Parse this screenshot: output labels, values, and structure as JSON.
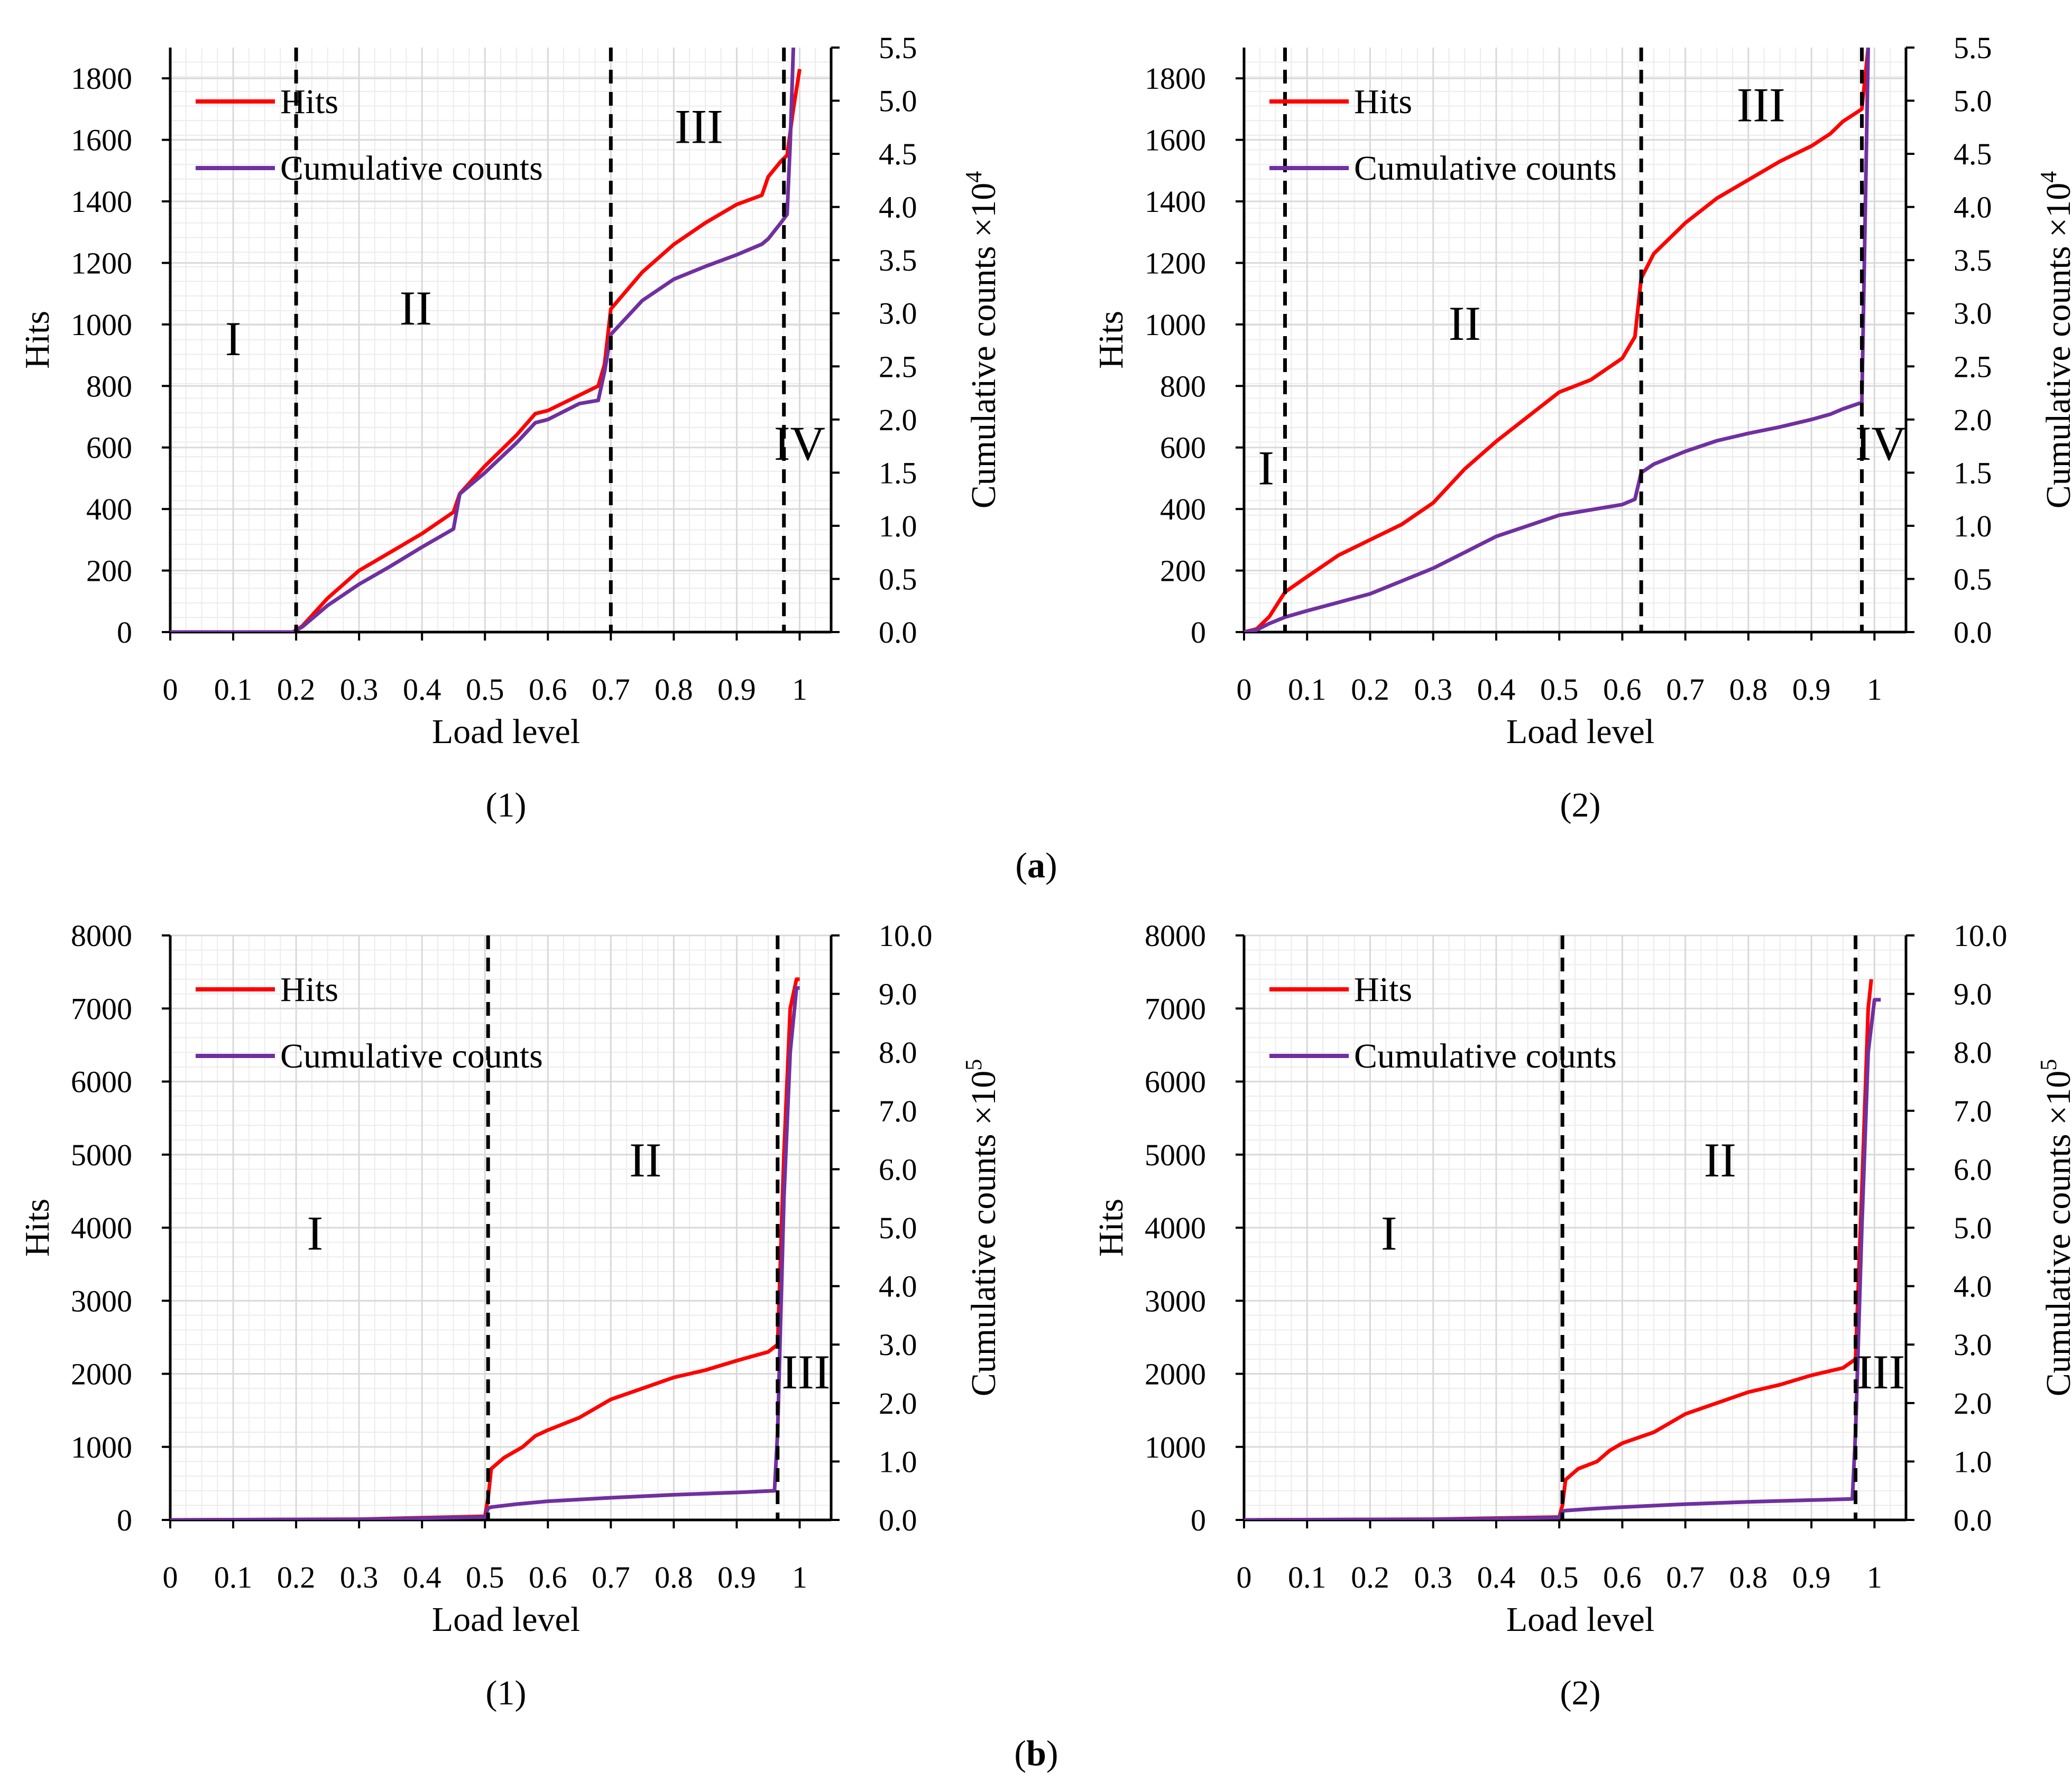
{
  "figure": {
    "group_captions": [
      {
        "prefix": "(",
        "letter": "a",
        "suffix": ")"
      },
      {
        "prefix": "(",
        "letter": "b",
        "suffix": ")"
      }
    ]
  },
  "colors": {
    "hits": "#ff0000",
    "cumulative": "#7030a0",
    "grid": "#d9d9d9",
    "axis": "#000000"
  },
  "chart_data": [
    {
      "type": "line",
      "caption": "(1)",
      "xlabel": "Load level",
      "ylabel": "Hits",
      "y2label": "Cumulative counts ×10",
      "y2exp": "4",
      "xlim": [
        0,
        1.05
      ],
      "ylim": [
        0,
        1900
      ],
      "y2lim": [
        0,
        5.5
      ],
      "xticks": [
        0,
        0.1,
        0.2,
        0.3,
        0.4,
        0.5,
        0.6,
        0.7,
        0.8,
        0.9,
        1
      ],
      "xtick_labels": [
        "0",
        "0.1",
        "0.2",
        "0.3",
        "0.4",
        "0.5",
        "0.6",
        "0.7",
        "0.8",
        "0.9",
        "1"
      ],
      "yticks": [
        0,
        200,
        400,
        600,
        800,
        1000,
        1200,
        1400,
        1600,
        1800
      ],
      "ytick_labels": [
        "0",
        "200",
        "400",
        "600",
        "800",
        "1000",
        "1200",
        "1400",
        "1600",
        "1800"
      ],
      "y2ticks": [
        0,
        0.5,
        1,
        1.5,
        2,
        2.5,
        3,
        3.5,
        4,
        4.5,
        5,
        5.5
      ],
      "y2tick_labels": [
        "0.0",
        "0.5",
        "1.0",
        "1.5",
        "2.0",
        "2.5",
        "3.0",
        "3.5",
        "4.0",
        "4.5",
        "5.0",
        "5.5"
      ],
      "dividers": [
        0.2,
        0.7,
        0.975
      ],
      "stages": [
        {
          "label": "I",
          "x": 0.1,
          "y": 900
        },
        {
          "label": "II",
          "x": 0.39,
          "y": 1000
        },
        {
          "label": "III",
          "x": 0.84,
          "y": 1590
        },
        {
          "label": "IV",
          "x": 1.0,
          "y": 560
        }
      ],
      "legend": {
        "position": "top-left",
        "entries": [
          "Hits",
          "Cumulative counts"
        ]
      },
      "series": [
        {
          "name": "Hits",
          "axis": "left",
          "x": [
            0,
            0.195,
            0.21,
            0.25,
            0.3,
            0.35,
            0.4,
            0.45,
            0.46,
            0.5,
            0.55,
            0.58,
            0.6,
            0.65,
            0.68,
            0.69,
            0.7,
            0.75,
            0.8,
            0.85,
            0.9,
            0.94,
            0.95,
            0.97,
            0.98,
            0.99,
            1.0
          ],
          "y": [
            0,
            0,
            20,
            110,
            200,
            260,
            320,
            390,
            450,
            540,
            640,
            710,
            720,
            770,
            800,
            870,
            1050,
            1170,
            1260,
            1330,
            1390,
            1420,
            1480,
            1530,
            1550,
            1700,
            1830
          ]
        },
        {
          "name": "Cumulative counts",
          "axis": "right",
          "x": [
            0,
            0.195,
            0.21,
            0.25,
            0.3,
            0.35,
            0.4,
            0.45,
            0.46,
            0.5,
            0.55,
            0.58,
            0.6,
            0.65,
            0.68,
            0.69,
            0.7,
            0.75,
            0.8,
            0.85,
            0.9,
            0.94,
            0.95,
            0.97,
            0.98,
            0.985,
            0.99
          ],
          "y": [
            0,
            0,
            0.05,
            0.25,
            0.45,
            0.62,
            0.8,
            0.97,
            1.3,
            1.5,
            1.78,
            1.97,
            2.0,
            2.15,
            2.18,
            2.45,
            2.8,
            3.12,
            3.32,
            3.44,
            3.55,
            3.65,
            3.7,
            3.85,
            3.93,
            4.6,
            5.5
          ]
        }
      ]
    },
    {
      "type": "line",
      "caption": "(2)",
      "xlabel": "Load level",
      "ylabel": "Hits",
      "y2label": "Cumulative counts ×10",
      "y2exp": "4",
      "xlim": [
        0,
        1.05
      ],
      "ylim": [
        0,
        1900
      ],
      "y2lim": [
        0,
        5.5
      ],
      "xticks": [
        0,
        0.1,
        0.2,
        0.3,
        0.4,
        0.5,
        0.6,
        0.7,
        0.8,
        0.9,
        1
      ],
      "xtick_labels": [
        "0",
        "0.1",
        "0.2",
        "0.3",
        "0.4",
        "0.5",
        "0.6",
        "0.7",
        "0.8",
        "0.9",
        "1"
      ],
      "yticks": [
        0,
        200,
        400,
        600,
        800,
        1000,
        1200,
        1400,
        1600,
        1800
      ],
      "ytick_labels": [
        "0",
        "200",
        "400",
        "600",
        "800",
        "1000",
        "1200",
        "1400",
        "1600",
        "1800"
      ],
      "y2ticks": [
        0,
        0.5,
        1,
        1.5,
        2,
        2.5,
        3,
        3.5,
        4,
        4.5,
        5,
        5.5
      ],
      "y2tick_labels": [
        "0.0",
        "0.5",
        "1.0",
        "1.5",
        "2.0",
        "2.5",
        "3.0",
        "3.5",
        "4.0",
        "4.5",
        "5.0",
        "5.5"
      ],
      "dividers": [
        0.065,
        0.63,
        0.98
      ],
      "stages": [
        {
          "label": "I",
          "x": 0.035,
          "y": 480
        },
        {
          "label": "II",
          "x": 0.35,
          "y": 950
        },
        {
          "label": "III",
          "x": 0.82,
          "y": 1660
        },
        {
          "label": "IV",
          "x": 1.01,
          "y": 560
        }
      ],
      "legend": {
        "position": "top-left",
        "entries": [
          "Hits",
          "Cumulative counts"
        ]
      },
      "series": [
        {
          "name": "Hits",
          "axis": "left",
          "x": [
            0,
            0.02,
            0.04,
            0.065,
            0.1,
            0.15,
            0.2,
            0.25,
            0.3,
            0.35,
            0.4,
            0.45,
            0.5,
            0.55,
            0.6,
            0.62,
            0.63,
            0.65,
            0.7,
            0.75,
            0.8,
            0.85,
            0.9,
            0.93,
            0.95,
            0.98,
            0.99
          ],
          "y": [
            0,
            10,
            50,
            130,
            180,
            250,
            300,
            350,
            420,
            530,
            620,
            700,
            780,
            820,
            890,
            960,
            1150,
            1230,
            1330,
            1410,
            1470,
            1530,
            1580,
            1620,
            1660,
            1700,
            1900
          ]
        },
        {
          "name": "Cumulative counts",
          "axis": "right",
          "x": [
            0,
            0.02,
            0.04,
            0.065,
            0.1,
            0.15,
            0.2,
            0.25,
            0.3,
            0.35,
            0.4,
            0.45,
            0.5,
            0.55,
            0.6,
            0.62,
            0.63,
            0.65,
            0.7,
            0.75,
            0.8,
            0.85,
            0.9,
            0.93,
            0.95,
            0.98,
            0.99
          ],
          "y": [
            0,
            0.02,
            0.08,
            0.14,
            0.2,
            0.28,
            0.36,
            0.48,
            0.6,
            0.75,
            0.9,
            1.0,
            1.1,
            1.15,
            1.2,
            1.25,
            1.5,
            1.58,
            1.7,
            1.8,
            1.87,
            1.93,
            2.0,
            2.05,
            2.1,
            2.16,
            5.5
          ]
        }
      ]
    },
    {
      "type": "line",
      "caption": "(1)",
      "xlabel": "Load level",
      "ylabel": "Hits",
      "y2label": "Cumulative counts ×10",
      "y2exp": "5",
      "xlim": [
        0,
        1.05
      ],
      "ylim": [
        0,
        8000
      ],
      "y2lim": [
        0,
        10
      ],
      "xticks": [
        0,
        0.1,
        0.2,
        0.3,
        0.4,
        0.5,
        0.6,
        0.7,
        0.8,
        0.9,
        1
      ],
      "xtick_labels": [
        "0",
        "0.1",
        "0.2",
        "0.3",
        "0.4",
        "0.5",
        "0.6",
        "0.7",
        "0.8",
        "0.9",
        "1"
      ],
      "yticks": [
        0,
        1000,
        2000,
        3000,
        4000,
        5000,
        6000,
        7000,
        8000
      ],
      "ytick_labels": [
        "0",
        "1000",
        "2000",
        "3000",
        "4000",
        "5000",
        "6000",
        "7000",
        "8000"
      ],
      "y2ticks": [
        0,
        1,
        2,
        3,
        4,
        5,
        6,
        7,
        8,
        9,
        10
      ],
      "y2tick_labels": [
        "0.0",
        "1.0",
        "2.0",
        "3.0",
        "4.0",
        "5.0",
        "6.0",
        "7.0",
        "8.0",
        "9.0",
        "10.0"
      ],
      "dividers": [
        0.505,
        0.965
      ],
      "stages": [
        {
          "label": "I",
          "x": 0.23,
          "y": 3700
        },
        {
          "label": "II",
          "x": 0.755,
          "y": 4700
        },
        {
          "label": "III",
          "x": 1.01,
          "y": 1800
        }
      ],
      "legend": {
        "position": "top-left",
        "entries": [
          "Hits",
          "Cumulative counts"
        ]
      },
      "series": [
        {
          "name": "Hits",
          "axis": "left",
          "x": [
            0,
            0.3,
            0.5,
            0.505,
            0.51,
            0.53,
            0.56,
            0.58,
            0.6,
            0.65,
            0.7,
            0.75,
            0.8,
            0.85,
            0.9,
            0.95,
            0.965,
            0.975,
            0.985,
            0.995,
            1.0
          ],
          "y": [
            0,
            10,
            50,
            300,
            700,
            850,
            1000,
            1150,
            1230,
            1400,
            1650,
            1800,
            1950,
            2050,
            2180,
            2300,
            2400,
            5000,
            7000,
            7400,
            7400
          ]
        },
        {
          "name": "Cumulative counts",
          "axis": "right",
          "x": [
            0,
            0.3,
            0.5,
            0.505,
            0.51,
            0.55,
            0.6,
            0.7,
            0.8,
            0.9,
            0.96,
            0.965,
            0.975,
            0.985,
            0.995,
            1.0
          ],
          "y": [
            0,
            0.01,
            0.05,
            0.2,
            0.22,
            0.27,
            0.32,
            0.38,
            0.43,
            0.47,
            0.5,
            1.5,
            5.5,
            8.0,
            9.1,
            9.1
          ]
        }
      ]
    },
    {
      "type": "line",
      "caption": "(2)",
      "xlabel": "Load level",
      "ylabel": "Hits",
      "y2label": "Cumulative counts ×10",
      "y2exp": "5",
      "xlim": [
        0,
        1.05
      ],
      "ylim": [
        0,
        8000
      ],
      "y2lim": [
        0,
        10
      ],
      "xticks": [
        0,
        0.1,
        0.2,
        0.3,
        0.4,
        0.5,
        0.6,
        0.7,
        0.8,
        0.9,
        1
      ],
      "xtick_labels": [
        "0",
        "0.1",
        "0.2",
        "0.3",
        "0.4",
        "0.5",
        "0.6",
        "0.7",
        "0.8",
        "0.9",
        "1"
      ],
      "yticks": [
        0,
        1000,
        2000,
        3000,
        4000,
        5000,
        6000,
        7000,
        8000
      ],
      "ytick_labels": [
        "0",
        "1000",
        "2000",
        "3000",
        "4000",
        "5000",
        "6000",
        "7000",
        "8000"
      ],
      "y2ticks": [
        0,
        1,
        2,
        3,
        4,
        5,
        6,
        7,
        8,
        9,
        10
      ],
      "y2tick_labels": [
        "0.0",
        "1.0",
        "2.0",
        "3.0",
        "4.0",
        "5.0",
        "6.0",
        "7.0",
        "8.0",
        "9.0",
        "10.0"
      ],
      "dividers": [
        0.505,
        0.97
      ],
      "stages": [
        {
          "label": "I",
          "x": 0.23,
          "y": 3700
        },
        {
          "label": "II",
          "x": 0.755,
          "y": 4700
        },
        {
          "label": "III",
          "x": 1.01,
          "y": 1800
        }
      ],
      "legend": {
        "position": "top-left",
        "entries": [
          "Hits",
          "Cumulative counts"
        ]
      },
      "series": [
        {
          "name": "Hits",
          "axis": "left",
          "x": [
            0,
            0.3,
            0.5,
            0.505,
            0.51,
            0.53,
            0.56,
            0.58,
            0.6,
            0.65,
            0.7,
            0.75,
            0.8,
            0.85,
            0.9,
            0.95,
            0.97,
            0.98,
            0.99,
            0.995
          ],
          "y": [
            0,
            10,
            40,
            200,
            550,
            700,
            800,
            950,
            1050,
            1200,
            1450,
            1600,
            1750,
            1850,
            1980,
            2080,
            2200,
            4500,
            7000,
            7400
          ]
        },
        {
          "name": "Cumulative counts",
          "axis": "right",
          "x": [
            0,
            0.3,
            0.5,
            0.505,
            0.51,
            0.55,
            0.6,
            0.7,
            0.8,
            0.9,
            0.965,
            0.97,
            0.98,
            0.99,
            1.0,
            1.01
          ],
          "y": [
            0,
            0.01,
            0.04,
            0.15,
            0.16,
            0.19,
            0.22,
            0.27,
            0.31,
            0.34,
            0.36,
            1.5,
            5.0,
            8.0,
            8.9,
            8.9
          ]
        }
      ]
    }
  ]
}
